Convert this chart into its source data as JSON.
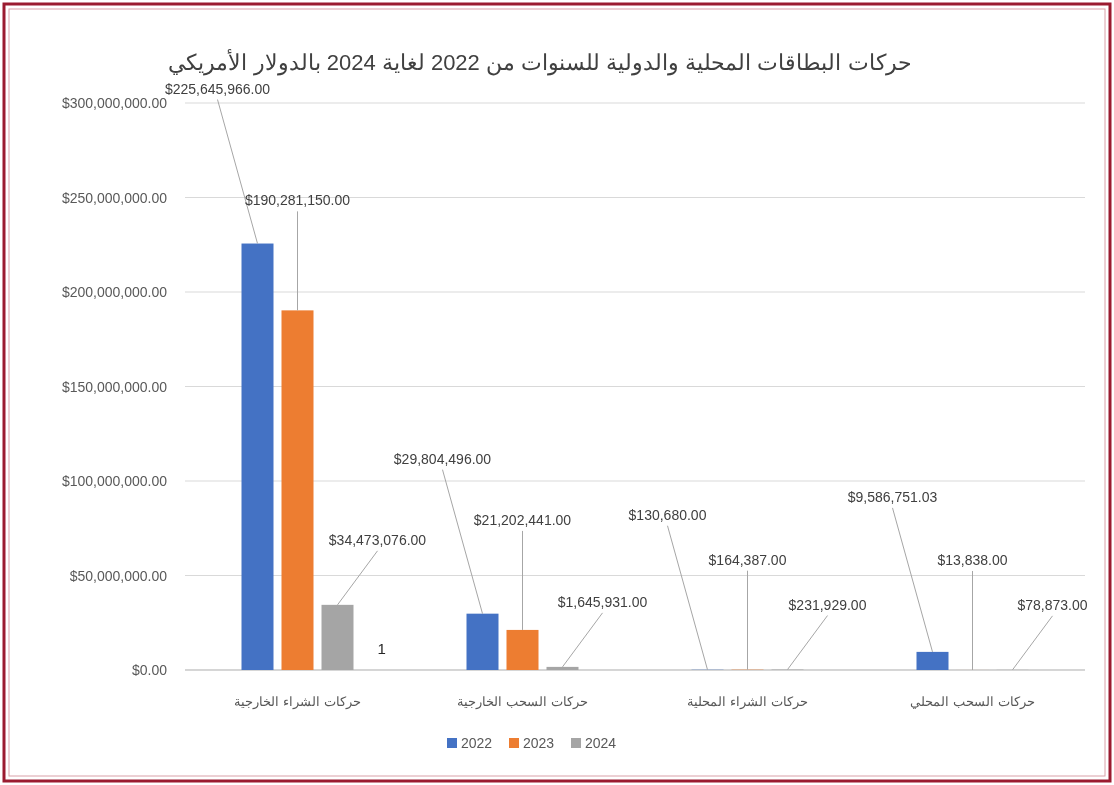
{
  "chart_data": {
    "type": "bar",
    "title": "حركات البطاقات المحلية والدولية للسنوات من 2022 لغاية 2024 بالدولار الأمريكي",
    "categories": [
      "حركات الشراء الخارجية",
      "حركات السحب الخارجية",
      "حركات الشراء المحلية",
      "حركات السحب المحلي"
    ],
    "series": [
      {
        "name": "2022",
        "color": "#4472c4",
        "values": [
          225645966,
          29804496,
          130680,
          9586751.03
        ],
        "value_labels": [
          "$225,645,966.00",
          "$29,804,496.00",
          "$130,680.00",
          "$9,586,751.03"
        ]
      },
      {
        "name": "2023",
        "color": "#ed7d31",
        "values": [
          190281150,
          21202441,
          164387,
          13838
        ],
        "value_labels": [
          "$190,281,150.00",
          "$21,202,441.00",
          "$164,387.00",
          "$13,838.00"
        ]
      },
      {
        "name": "2024",
        "color": "#a5a5a5",
        "values": [
          34473076,
          1645931,
          231929,
          78873
        ],
        "value_labels": [
          "$34,473,076.00",
          "$1,645,931.00",
          "$231,929.00",
          "$78,873.00"
        ]
      }
    ],
    "ylim": [
      0,
      300000000
    ],
    "yticks": [
      {
        "value": 0,
        "label": "$0.00"
      },
      {
        "value": 50000000,
        "label": "$50,000,000.00"
      },
      {
        "value": 100000000,
        "label": "$100,000,000.00"
      },
      {
        "value": 150000000,
        "label": "$150,000,000.00"
      },
      {
        "value": 200000000,
        "label": "$200,000,000.00"
      },
      {
        "value": 250000000,
        "label": "$250,000,000.00"
      },
      {
        "value": 300000000,
        "label": "$300,000,000.00"
      }
    ],
    "grid": "y",
    "legend": "bottom",
    "annotations": [
      "1"
    ]
  }
}
